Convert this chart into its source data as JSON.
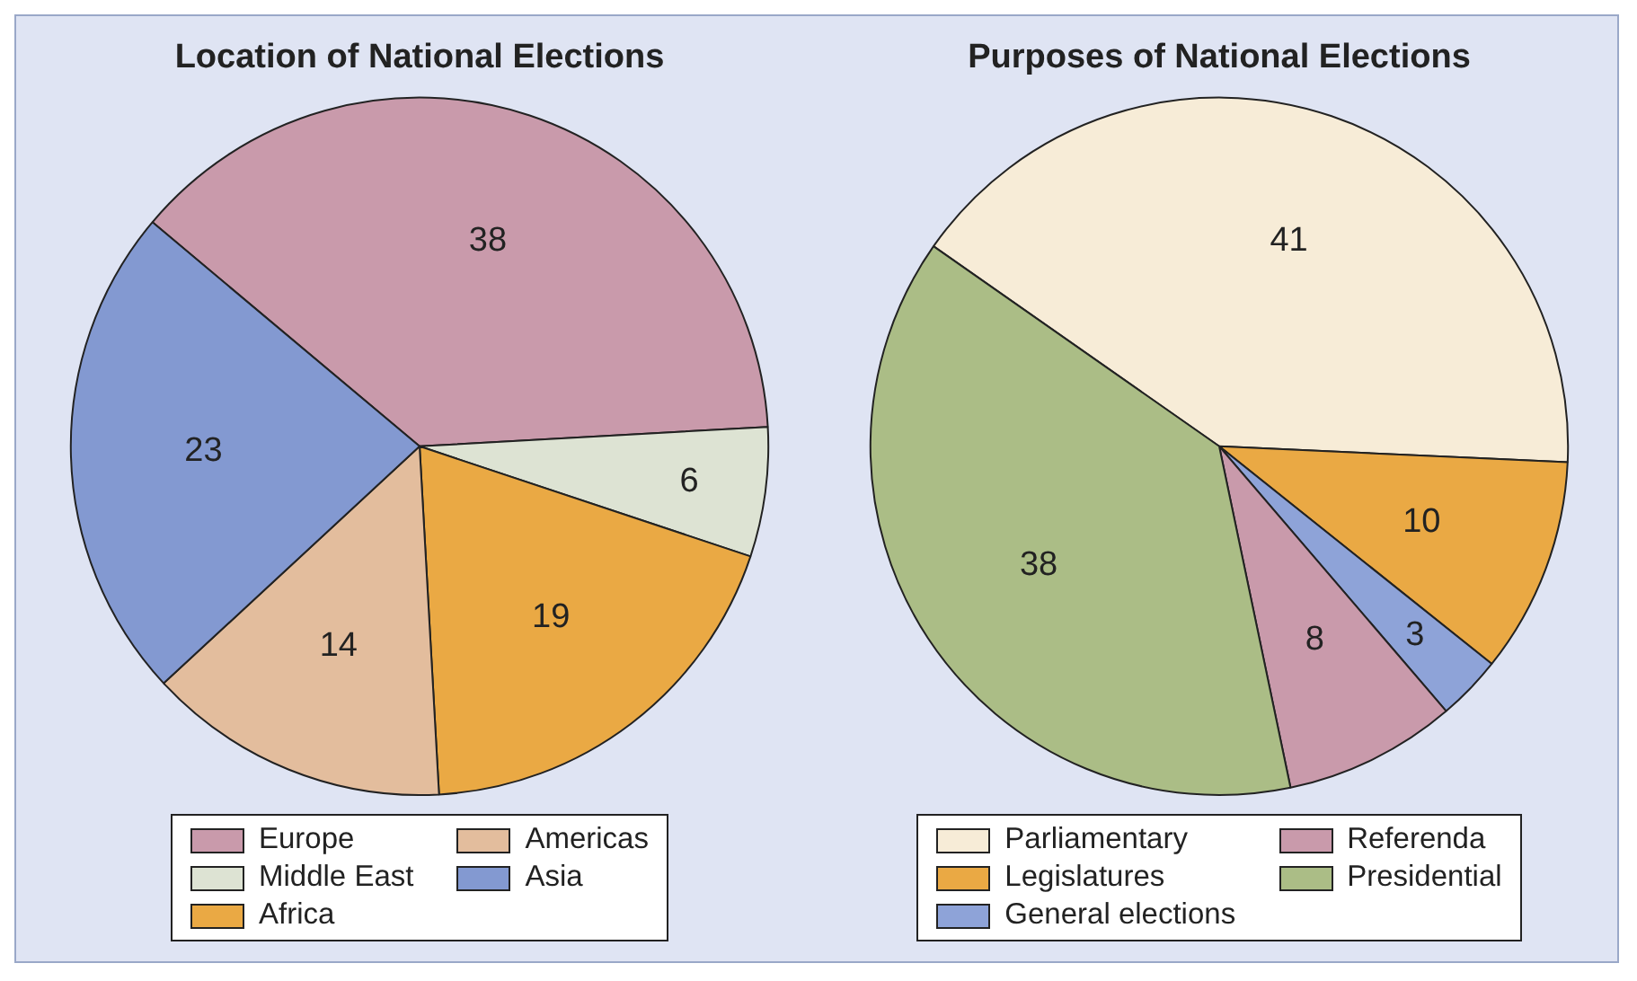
{
  "chart_data": [
    {
      "type": "pie",
      "title": "Location of National Elections",
      "categories": [
        "Europe",
        "Middle East",
        "Africa",
        "Americas",
        "Asia"
      ],
      "values": [
        38,
        6,
        19,
        14,
        23
      ],
      "colors": [
        "#c99aab",
        "#dde3d3",
        "#eaa944",
        "#e3bd9d",
        "#8399d1"
      ],
      "data_labels": true,
      "legend": "bottom"
    },
    {
      "type": "pie",
      "title": "Purposes of National Elections",
      "categories": [
        "Parliamentary",
        "Legislatures",
        "General elections",
        "Referenda",
        "Presidential"
      ],
      "values": [
        41,
        10,
        3,
        8,
        38
      ],
      "colors": [
        "#f7ecd7",
        "#eaa944",
        "#8ea3d8",
        "#c99aab",
        "#abbd86"
      ],
      "data_labels": true,
      "legend": "bottom"
    }
  ]
}
